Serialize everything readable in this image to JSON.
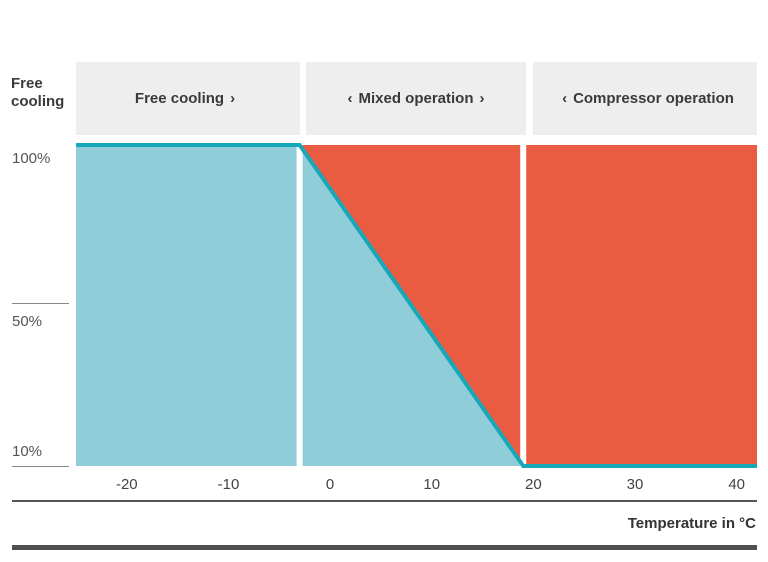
{
  "ylabel": "Free cooling",
  "xlabel": "Temperature in °C",
  "regions": [
    {
      "label": "Free cooling",
      "left_arrow": "",
      "right_arrow": "›"
    },
    {
      "label": "Mixed operation",
      "left_arrow": "‹",
      "right_arrow": "›"
    },
    {
      "label": "Compressor operation",
      "left_arrow": "‹",
      "right_arrow": ""
    }
  ],
  "colors": {
    "free": "#8fced8",
    "compressor": "#e95c42",
    "line": "#16a8b8",
    "header": "#eeeeee"
  },
  "chart_data": {
    "type": "area",
    "xlabel": "Temperature in °C",
    "ylabel": "Free cooling",
    "x_ticks": [
      "-20",
      "-10",
      "0",
      "10",
      "20",
      "30",
      "40"
    ],
    "y_ticks": [
      "100%",
      "50%",
      "10%"
    ],
    "xlim": [
      -25,
      42
    ],
    "ylim": [
      10,
      100
    ],
    "series": [
      {
        "values_x": [
          -25,
          -3,
          19,
          42
        ],
        "values_y": [
          100,
          100,
          10,
          10
        ]
      }
    ],
    "region_bounds": [
      [
        -25,
        -3
      ],
      [
        -3,
        19
      ],
      [
        19,
        42
      ]
    ]
  }
}
